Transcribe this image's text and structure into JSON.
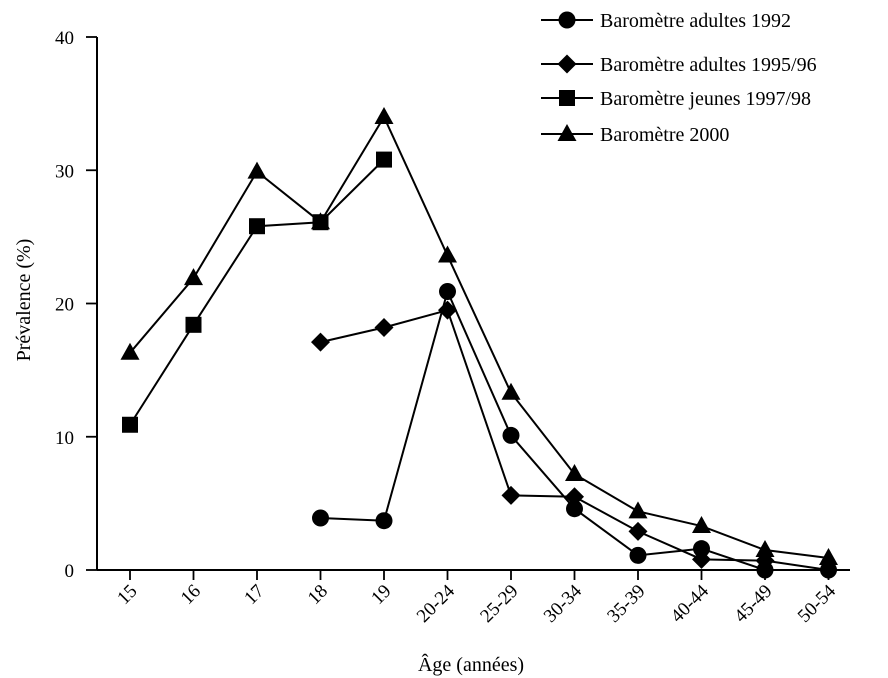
{
  "chart_data": {
    "type": "line",
    "title": "",
    "xlabel": "Âge (années)",
    "ylabel": "Prévalence (%)",
    "ylim": [
      0,
      40
    ],
    "yticks": [
      0,
      10,
      20,
      30,
      40
    ],
    "categories": [
      "15",
      "16",
      "17",
      "18",
      "19",
      "20-24",
      "25-29",
      "30-34",
      "35-39",
      "40-44",
      "45-49",
      "50-54"
    ],
    "grid": false,
    "legend_position": "top-right",
    "series": [
      {
        "name": "Baromètre adultes 1992",
        "marker": "circle",
        "values": [
          null,
          null,
          null,
          3.9,
          3.7,
          20.9,
          10.1,
          4.6,
          1.1,
          1.6,
          0.0,
          0.0
        ]
      },
      {
        "name": "Baromètre adultes 1995/96",
        "marker": "diamond",
        "values": [
          null,
          null,
          null,
          17.1,
          18.2,
          19.5,
          5.6,
          5.5,
          2.9,
          0.8,
          0.7,
          0.0
        ]
      },
      {
        "name": "Baromètre jeunes 1997/98",
        "marker": "square",
        "values": [
          10.9,
          18.4,
          25.8,
          26.1,
          30.8,
          null,
          null,
          null,
          null,
          null,
          null,
          null
        ]
      },
      {
        "name": "Baromètre 2000",
        "marker": "triangle",
        "values": [
          16.3,
          21.9,
          29.9,
          26.1,
          34.0,
          23.6,
          13.3,
          7.2,
          4.4,
          3.3,
          1.5,
          0.9
        ]
      }
    ]
  }
}
